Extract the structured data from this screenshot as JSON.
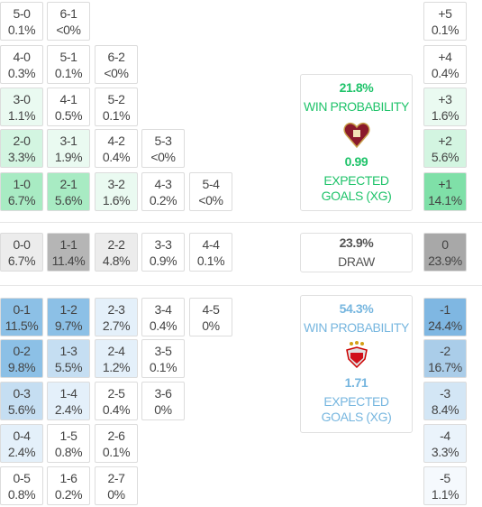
{
  "home": {
    "summary": {
      "probability": "21.8%",
      "probability_label": "WIN PROBABILITY",
      "xg": "0.99",
      "xg_label": "EXPECTED GOALS (XG)",
      "color": "#1fc36a"
    },
    "rows": [
      [
        {
          "score": "5-0",
          "prob": "0.1%",
          "color": "#ffffff"
        },
        {
          "score": "6-1",
          "prob": "<0%",
          "color": "#ffffff"
        }
      ],
      [
        {
          "score": "4-0",
          "prob": "0.3%",
          "color": "#ffffff"
        },
        {
          "score": "5-1",
          "prob": "0.1%",
          "color": "#ffffff"
        },
        {
          "score": "6-2",
          "prob": "<0%",
          "color": "#ffffff"
        }
      ],
      [
        {
          "score": "3-0",
          "prob": "1.1%",
          "color": "#eafaf1"
        },
        {
          "score": "4-1",
          "prob": "0.5%",
          "color": "#ffffff"
        },
        {
          "score": "5-2",
          "prob": "0.1%",
          "color": "#ffffff"
        }
      ],
      [
        {
          "score": "2-0",
          "prob": "3.3%",
          "color": "#d3f5e1"
        },
        {
          "score": "3-1",
          "prob": "1.9%",
          "color": "#eafaf1"
        },
        {
          "score": "4-2",
          "prob": "0.4%",
          "color": "#ffffff"
        },
        {
          "score": "5-3",
          "prob": "<0%",
          "color": "#ffffff"
        }
      ],
      [
        {
          "score": "1-0",
          "prob": "6.7%",
          "color": "#a8ebc3"
        },
        {
          "score": "2-1",
          "prob": "5.6%",
          "color": "#a8ebc3"
        },
        {
          "score": "3-2",
          "prob": "1.6%",
          "color": "#eafaf1"
        },
        {
          "score": "4-3",
          "prob": "0.2%",
          "color": "#ffffff"
        },
        {
          "score": "5-4",
          "prob": "<0%",
          "color": "#ffffff"
        }
      ]
    ],
    "margins": [
      {
        "score": "+5",
        "prob": "0.1%",
        "color": "#ffffff"
      },
      {
        "score": "+4",
        "prob": "0.4%",
        "color": "#ffffff"
      },
      {
        "score": "+3",
        "prob": "1.6%",
        "color": "#eafaf1"
      },
      {
        "score": "+2",
        "prob": "5.6%",
        "color": "#d3f5e1"
      },
      {
        "score": "+1",
        "prob": "14.1%",
        "color": "#7fe0a8"
      }
    ]
  },
  "draw": {
    "summary": {
      "probability": "23.9%",
      "probability_label": "DRAW",
      "color": "#555555"
    },
    "rows": [
      [
        {
          "score": "0-0",
          "prob": "6.7%",
          "color": "#ececec"
        },
        {
          "score": "1-1",
          "prob": "11.4%",
          "color": "#b5b5b5"
        },
        {
          "score": "2-2",
          "prob": "4.8%",
          "color": "#ececec"
        },
        {
          "score": "3-3",
          "prob": "0.9%",
          "color": "#ffffff"
        },
        {
          "score": "4-4",
          "prob": "0.1%",
          "color": "#ffffff"
        }
      ]
    ],
    "margins": [
      {
        "score": "0",
        "prob": "23.9%",
        "color": "#a8a8a8"
      }
    ]
  },
  "away": {
    "summary": {
      "probability": "54.3%",
      "probability_label": "WIN PROBABILITY",
      "xg": "1.71",
      "xg_label": "EXPECTED GOALS (XG)",
      "color": "#76b6df"
    },
    "rows": [
      [
        {
          "score": "0-1",
          "prob": "11.5%",
          "color": "#8cc0e6"
        },
        {
          "score": "1-2",
          "prob": "9.7%",
          "color": "#8cc0e6"
        },
        {
          "score": "2-3",
          "prob": "2.7%",
          "color": "#e4f0fa"
        },
        {
          "score": "3-4",
          "prob": "0.4%",
          "color": "#ffffff"
        },
        {
          "score": "4-5",
          "prob": "0%",
          "color": "#ffffff"
        }
      ],
      [
        {
          "score": "0-2",
          "prob": "9.8%",
          "color": "#8cc0e6"
        },
        {
          "score": "1-3",
          "prob": "5.5%",
          "color": "#c5def2"
        },
        {
          "score": "2-4",
          "prob": "1.2%",
          "color": "#e4f0fa"
        },
        {
          "score": "3-5",
          "prob": "0.1%",
          "color": "#ffffff"
        }
      ],
      [
        {
          "score": "0-3",
          "prob": "5.6%",
          "color": "#c5def2"
        },
        {
          "score": "1-4",
          "prob": "2.4%",
          "color": "#e4f0fa"
        },
        {
          "score": "2-5",
          "prob": "0.4%",
          "color": "#ffffff"
        },
        {
          "score": "3-6",
          "prob": "0%",
          "color": "#ffffff"
        }
      ],
      [
        {
          "score": "0-4",
          "prob": "2.4%",
          "color": "#e4f0fa"
        },
        {
          "score": "1-5",
          "prob": "0.8%",
          "color": "#ffffff"
        },
        {
          "score": "2-6",
          "prob": "0.1%",
          "color": "#ffffff"
        }
      ],
      [
        {
          "score": "0-5",
          "prob": "0.8%",
          "color": "#ffffff"
        },
        {
          "score": "1-6",
          "prob": "0.2%",
          "color": "#ffffff"
        },
        {
          "score": "2-7",
          "prob": "0%",
          "color": "#ffffff"
        }
      ]
    ],
    "margins": [
      {
        "score": "-1",
        "prob": "24.4%",
        "color": "#7fb7e2"
      },
      {
        "score": "-2",
        "prob": "16.7%",
        "color": "#aacde9"
      },
      {
        "score": "-3",
        "prob": "8.4%",
        "color": "#d3e6f5"
      },
      {
        "score": "-4",
        "prob": "3.3%",
        "color": "#eaf3fb"
      },
      {
        "score": "-5",
        "prob": "1.1%",
        "color": "#f5f9fd"
      }
    ]
  }
}
